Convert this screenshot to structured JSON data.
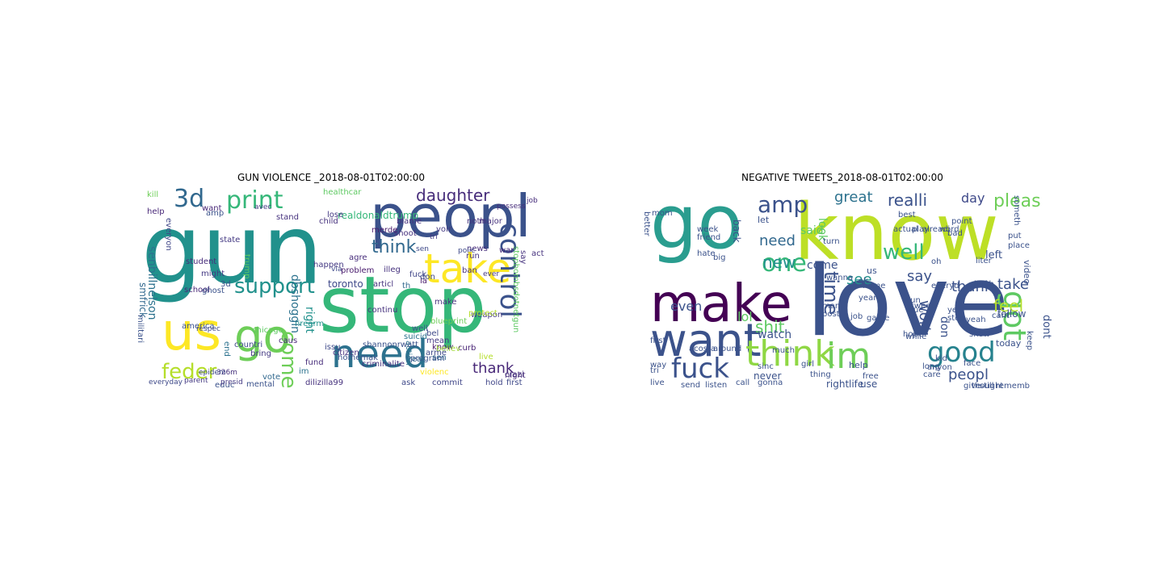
{
  "panels": [
    {
      "title": "GUN VIOLENCE _2018-08-01T02:00:00",
      "words": [
        {
          "text": "gun",
          "color": "#21918c"
        },
        {
          "text": "peopl",
          "color": "#3b528b"
        },
        {
          "text": "stop",
          "color": "#35b779"
        },
        {
          "text": "us",
          "color": "#fde725"
        },
        {
          "text": "go",
          "color": "#6ece58"
        },
        {
          "text": "need",
          "color": "#2c728e"
        },
        {
          "text": "take",
          "color": "#fde725"
        },
        {
          "text": "3d",
          "color": "#31688e"
        },
        {
          "text": "print",
          "color": "#35b779"
        },
        {
          "text": "support",
          "color": "#21918c"
        },
        {
          "text": "control",
          "color": "#3b528b"
        },
        {
          "text": "come",
          "color": "#6ece58"
        },
        {
          "text": "feder",
          "color": "#b5de2b"
        },
        {
          "text": "daughter",
          "color": "#472d7b"
        },
        {
          "text": "think",
          "color": "#31688e"
        },
        {
          "text": "thank",
          "color": "#482878"
        },
        {
          "text": "right",
          "color": "#21918c"
        },
        {
          "text": "toronto",
          "color": "#3e4989"
        },
        {
          "text": "realdonaldtrump",
          "color": "#35b779"
        },
        {
          "text": "healthcar",
          "color": "#5ec962"
        },
        {
          "text": "senbillnelson",
          "color": "#2c728e"
        },
        {
          "text": "smfrick",
          "color": "#31688e"
        },
        {
          "text": "problem",
          "color": "#481a6c"
        },
        {
          "text": "state",
          "color": "#443983"
        },
        {
          "text": "school",
          "color": "#482878"
        },
        {
          "text": "countri",
          "color": "#3e4989"
        },
        {
          "text": "everyon",
          "color": "#404688"
        },
        {
          "text": "student",
          "color": "#472d7b"
        },
        {
          "text": "happen",
          "color": "#443983"
        },
        {
          "text": "issu",
          "color": "#3e4989"
        },
        {
          "text": "suicid",
          "color": "#2c728e"
        },
        {
          "text": "vote",
          "color": "#31688e"
        },
        {
          "text": "educ",
          "color": "#3b528b"
        },
        {
          "text": "mental",
          "color": "#3b528b"
        },
        {
          "text": "firearm",
          "color": "#21918c"
        },
        {
          "text": "america",
          "color": "#3b528b"
        },
        {
          "text": "kill",
          "color": "#6ece58"
        },
        {
          "text": "make",
          "color": "#46327e"
        },
        {
          "text": "ban",
          "color": "#46327e"
        },
        {
          "text": "sen",
          "color": "#31688e"
        },
        {
          "text": "live",
          "color": "#b5de2b"
        },
        {
          "text": "news",
          "color": "#472d7b"
        },
        {
          "text": "curb",
          "color": "#482475"
        },
        {
          "text": "know",
          "color": "#481a6c"
        },
        {
          "text": "believ",
          "color": "#a0da39"
        },
        {
          "text": "fuck",
          "color": "#404688"
        },
        {
          "text": "weapon",
          "color": "#443983"
        },
        {
          "text": "say",
          "color": "#46327e"
        },
        {
          "text": "job",
          "color": "#472d7b"
        },
        {
          "text": "stopbombsdotnetgun",
          "color": "#5ec962"
        },
        {
          "text": "dilizilla99",
          "color": "#46327e"
        },
        {
          "text": "criminalite",
          "color": "#46327e"
        },
        {
          "text": "violenc",
          "color": "#fde725"
        },
        {
          "text": "program",
          "color": "#3b528b"
        },
        {
          "text": "commit",
          "color": "#404688"
        },
        {
          "text": "ask",
          "color": "#3e4989"
        },
        {
          "text": "night",
          "color": "#472d7b"
        },
        {
          "text": "first",
          "color": "#3e4989"
        },
        {
          "text": "hold",
          "color": "#404688"
        },
        {
          "text": "possess",
          "color": "#472d7b"
        },
        {
          "text": "bring",
          "color": "#443983"
        },
        {
          "text": "chicago",
          "color": "#5ec962"
        },
        {
          "text": "caus",
          "color": "#482878"
        },
        {
          "text": "end",
          "color": "#2c728e"
        },
        {
          "text": "fund",
          "color": "#472d7b"
        },
        {
          "text": "citizen",
          "color": "#46327e"
        },
        {
          "text": "action",
          "color": "#2c728e"
        },
        {
          "text": "continu",
          "color": "#46327e"
        },
        {
          "text": "articl",
          "color": "#46327e"
        },
        {
          "text": "la",
          "color": "#481a6c"
        },
        {
          "text": "th",
          "color": "#31688e"
        },
        {
          "text": "ghost",
          "color": "#3b528b"
        },
        {
          "text": "amp",
          "color": "#3b528b"
        },
        {
          "text": "trump",
          "color": "#5ec962"
        },
        {
          "text": "child",
          "color": "#46327e"
        },
        {
          "text": "lose",
          "color": "#443983"
        },
        {
          "text": "stand",
          "color": "#46327e"
        },
        {
          "text": "shoot",
          "color": "#46327e"
        },
        {
          "text": "militari",
          "color": "#3b528b"
        },
        {
          "text": "dbshoggin",
          "color": "#2c728e"
        },
        {
          "text": "homemak",
          "color": "#3b528b"
        },
        {
          "text": "illeg",
          "color": "#46327e"
        },
        {
          "text": "treat",
          "color": "#31688e"
        },
        {
          "text": "crazi",
          "color": "#46327e"
        },
        {
          "text": "major",
          "color": "#46327e"
        },
        {
          "text": "war",
          "color": "#472d7b"
        },
        {
          "text": "act",
          "color": "#46327e"
        },
        {
          "text": "3d",
          "color": "#3b528b"
        },
        {
          "text": "help",
          "color": "#482878"
        },
        {
          "text": "want",
          "color": "#482878"
        },
        {
          "text": "might",
          "color": "#443983"
        },
        {
          "text": "everyday",
          "color": "#3e4989"
        },
        {
          "text": "parent",
          "color": "#443983"
        },
        {
          "text": "presid",
          "color": "#443983"
        },
        {
          "text": "326m",
          "color": "#46327e"
        },
        {
          "text": "epidem",
          "color": "#3e4989"
        },
        {
          "text": "respec",
          "color": "#3e4989"
        },
        {
          "text": "well",
          "color": "#3b528b"
        },
        {
          "text": "protect",
          "color": "#b5de2b"
        },
        {
          "text": "blueprint",
          "color": "#6ece58"
        },
        {
          "text": "shannonrwatt",
          "color": "#3b528b"
        },
        {
          "text": "agre",
          "color": "#472d7b"
        },
        {
          "text": "im",
          "color": "#2c728e"
        },
        {
          "text": "merde",
          "color": "#481a6c"
        },
        {
          "text": "blame",
          "color": "#46327e"
        },
        {
          "text": "voir",
          "color": "#443983"
        },
        {
          "text": "run",
          "color": "#46327e"
        },
        {
          "text": "noth",
          "color": "#46327e"
        },
        {
          "text": "arme",
          "color": "#3e4989"
        },
        {
          "text": "don",
          "color": "#3e4989"
        },
        {
          "text": "sen",
          "color": "#3e4989"
        },
        {
          "text": "mean",
          "color": "#443983"
        },
        {
          "text": "bel",
          "color": "#3e4989"
        },
        {
          "text": "poiic",
          "color": "#3e4989"
        },
        {
          "text": "via",
          "color": "#3e4989"
        },
        {
          "text": "avec",
          "color": "#443983"
        },
        {
          "text": "ever",
          "color": "#443983"
        },
        {
          "text": "tri",
          "color": "#443983"
        },
        {
          "text": "boy",
          "color": "#3e4989"
        }
      ]
    },
    {
      "title": "NEGATIVE TWEETS_2018-08-01T02:00:00",
      "words": [
        {
          "text": "go",
          "color": "#2a9d8f"
        },
        {
          "text": "know",
          "color": "#bddf26"
        },
        {
          "text": "love",
          "color": "#3b528b"
        },
        {
          "text": "make",
          "color": "#440154"
        },
        {
          "text": "want",
          "color": "#3b528b"
        },
        {
          "text": "think",
          "color": "#8fd744"
        },
        {
          "text": "im",
          "color": "#6ece58"
        },
        {
          "text": "good",
          "color": "#26828e"
        },
        {
          "text": "got",
          "color": "#5ec962"
        },
        {
          "text": "fuck",
          "color": "#3b528b"
        },
        {
          "text": "amp",
          "color": "#3b528b"
        },
        {
          "text": "one",
          "color": "#35b779"
        },
        {
          "text": "time",
          "color": "#3b528b"
        },
        {
          "text": "need",
          "color": "#31688e"
        },
        {
          "text": "new",
          "color": "#21918c"
        },
        {
          "text": "great",
          "color": "#2c728e"
        },
        {
          "text": "realli",
          "color": "#3b528b"
        },
        {
          "text": "day",
          "color": "#3e4989"
        },
        {
          "text": "pleas",
          "color": "#6ece58"
        },
        {
          "text": "well",
          "color": "#35b779"
        },
        {
          "text": "see",
          "color": "#21918c"
        },
        {
          "text": "say",
          "color": "#3b528b"
        },
        {
          "text": "work",
          "color": "#3b528b"
        },
        {
          "text": "thank",
          "color": "#3b528b"
        },
        {
          "text": "feel",
          "color": "#b5de2b"
        },
        {
          "text": "take",
          "color": "#3b528b"
        },
        {
          "text": "peopl",
          "color": "#3b528b"
        },
        {
          "text": "shit",
          "color": "#5ec962"
        },
        {
          "text": "even",
          "color": "#3b528b"
        },
        {
          "text": "lol",
          "color": "#5ec962"
        },
        {
          "text": "watch",
          "color": "#3b528b"
        },
        {
          "text": "said",
          "color": "#5ec962"
        },
        {
          "text": "come",
          "color": "#3b528b"
        },
        {
          "text": "look",
          "color": "#5ec962"
        },
        {
          "text": "don",
          "color": "#3b528b"
        },
        {
          "text": "dont",
          "color": "#3b528b"
        },
        {
          "text": "follow",
          "color": "#3b528b"
        },
        {
          "text": "left",
          "color": "#3b528b"
        },
        {
          "text": "us",
          "color": "#3b528b"
        },
        {
          "text": "let",
          "color": "#3b528b"
        },
        {
          "text": "back",
          "color": "#3b528b"
        },
        {
          "text": "never",
          "color": "#3b528b"
        },
        {
          "text": "right",
          "color": "#3b528b"
        },
        {
          "text": "life",
          "color": "#3b528b"
        },
        {
          "text": "use",
          "color": "#3b528b"
        },
        {
          "text": "help",
          "color": "#3b528b"
        },
        {
          "text": "today",
          "color": "#3b528b"
        },
        {
          "text": "hope",
          "color": "#3b528b"
        },
        {
          "text": "video",
          "color": "#3b528b"
        },
        {
          "text": "stop",
          "color": "#3b528b"
        },
        {
          "text": "tweet",
          "color": "#3b528b"
        },
        {
          "text": "better",
          "color": "#3b528b"
        },
        {
          "text": "mom",
          "color": "#3b528b"
        },
        {
          "text": "week",
          "color": "#3b528b"
        },
        {
          "text": "friend",
          "color": "#3b528b"
        },
        {
          "text": "hate",
          "color": "#3b528b"
        },
        {
          "text": "big",
          "color": "#3b528b"
        },
        {
          "text": "first",
          "color": "#3b528b"
        },
        {
          "text": "live",
          "color": "#3b528b"
        },
        {
          "text": "tri",
          "color": "#3b528b"
        },
        {
          "text": "way",
          "color": "#3b528b"
        },
        {
          "text": "acosta",
          "color": "#3b528b"
        },
        {
          "text": "around",
          "color": "#3b528b"
        },
        {
          "text": "much",
          "color": "#3b528b"
        },
        {
          "text": "call",
          "color": "#3b528b"
        },
        {
          "text": "gonna",
          "color": "#3b528b"
        },
        {
          "text": "sinc",
          "color": "#3b528b"
        },
        {
          "text": "send",
          "color": "#3b528b"
        },
        {
          "text": "listen",
          "color": "#3b528b"
        },
        {
          "text": "care",
          "color": "#3b528b"
        },
        {
          "text": "face",
          "color": "#3b528b"
        },
        {
          "text": "anyon",
          "color": "#3b528b"
        },
        {
          "text": "kid",
          "color": "#3b528b"
        },
        {
          "text": "free",
          "color": "#3b528b"
        },
        {
          "text": "home",
          "color": "#3b528b"
        },
        {
          "text": "year",
          "color": "#3b528b"
        },
        {
          "text": "job",
          "color": "#3b528b"
        },
        {
          "text": "game",
          "color": "#3b528b"
        },
        {
          "text": "post",
          "color": "#3b528b"
        },
        {
          "text": "man",
          "color": "#3b528b"
        },
        {
          "text": "turn",
          "color": "#3b528b"
        },
        {
          "text": "best",
          "color": "#3b528b"
        },
        {
          "text": "actual",
          "color": "#3b528b"
        },
        {
          "text": "play",
          "color": "#3b528b"
        },
        {
          "text": "alreadi",
          "color": "#3b528b"
        },
        {
          "text": "word",
          "color": "#3b528b"
        },
        {
          "text": "liter",
          "color": "#3b528b"
        },
        {
          "text": "bitch",
          "color": "#3b528b"
        },
        {
          "text": "yeah",
          "color": "#3b528b"
        },
        {
          "text": "show",
          "color": "#3b528b"
        },
        {
          "text": "keep",
          "color": "#3b528b"
        },
        {
          "text": "thought",
          "color": "#3b528b"
        },
        {
          "text": "give",
          "color": "#3b528b"
        },
        {
          "text": "rememb",
          "color": "#3b528b"
        },
        {
          "text": "still",
          "color": "#3b528b"
        },
        {
          "text": "true",
          "color": "#3b528b"
        },
        {
          "text": "cant",
          "color": "#3b528b"
        },
        {
          "text": "oh",
          "color": "#3b528b"
        },
        {
          "text": "someth",
          "color": "#3b528b"
        },
        {
          "text": "everyd",
          "color": "#3b528b"
        },
        {
          "text": "wanna",
          "color": "#3b528b"
        },
        {
          "text": "girl",
          "color": "#3b528b"
        },
        {
          "text": "ye",
          "color": "#3b528b"
        },
        {
          "text": "run",
          "color": "#3b528b"
        },
        {
          "text": "ok",
          "color": "#3b528b"
        },
        {
          "text": "thing",
          "color": "#3b528b"
        },
        {
          "text": "while",
          "color": "#3b528b"
        },
        {
          "text": "point",
          "color": "#3b528b"
        },
        {
          "text": "bad",
          "color": "#3b528b"
        },
        {
          "text": "long",
          "color": "#3b528b"
        },
        {
          "text": "put",
          "color": "#3b528b"
        },
        {
          "text": "place",
          "color": "#3b528b"
        }
      ]
    }
  ]
}
